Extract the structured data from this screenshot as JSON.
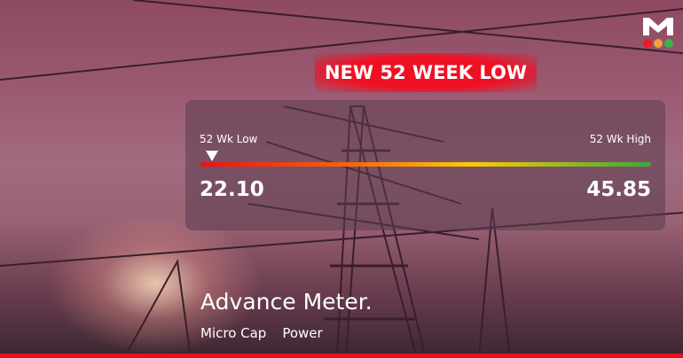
{
  "banner": "NEW 52 WEEK LOW",
  "range": {
    "low_label": "52 Wk Low",
    "high_label": "52 Wk High",
    "low": "22.10",
    "high": "45.85",
    "marker_position_pct": 2.5
  },
  "stock": {
    "name": "Advance Meter.",
    "tags": [
      "Micro Cap",
      "Power"
    ]
  },
  "logo": {
    "letter": "M",
    "dots": [
      "#ee1b24",
      "#f4a23b",
      "#3cb34a"
    ]
  },
  "colors": {
    "accent": "#e8101c"
  }
}
